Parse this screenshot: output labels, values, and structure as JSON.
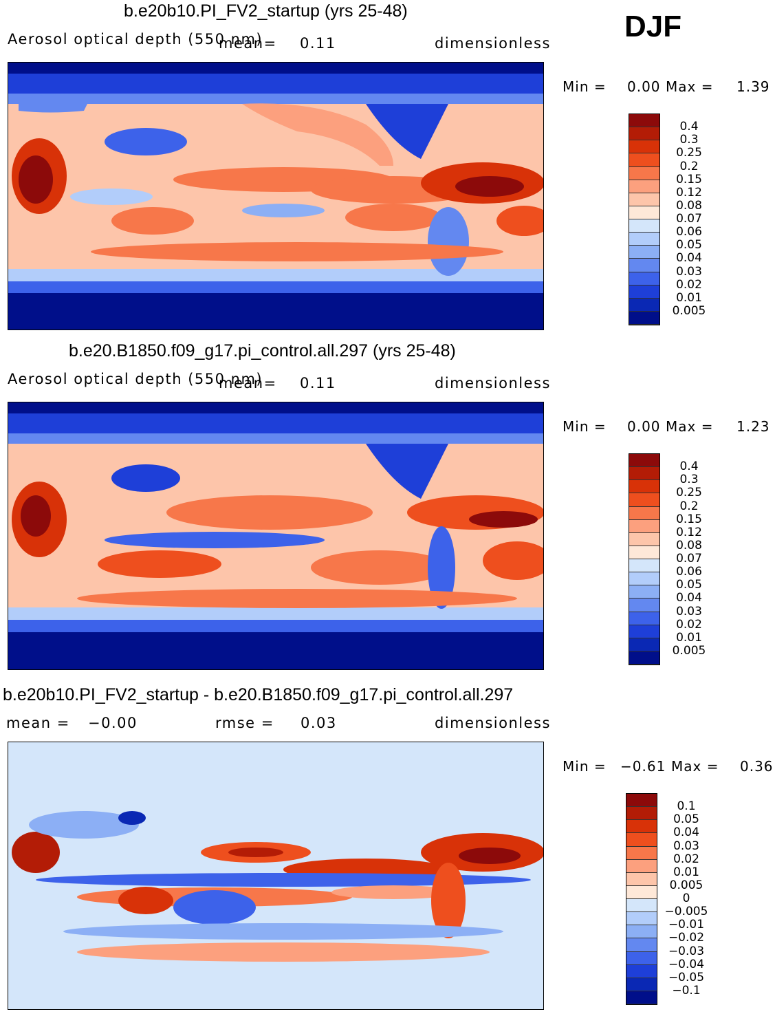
{
  "season": "DJF",
  "panels": [
    {
      "title": "b.e20b10.PI_FV2_startup (yrs 25-48)",
      "variable": "Aerosol optical depth (550 nm)",
      "mean_label": "mean",
      "mean_value": "0.11",
      "units": "dimensionless",
      "min_label": "Min  =",
      "min_value": "0.00",
      "max_label": "Max  =",
      "max_value": "1.39",
      "levels": [
        "0.4",
        "0.3",
        "0.25",
        "0.2",
        "0.15",
        "0.12",
        "0.08",
        "0.07",
        "0.06",
        "0.05",
        "0.04",
        "0.03",
        "0.02",
        "0.01",
        "0.005"
      ],
      "colors": [
        "#8c0a0a",
        "#b31c06",
        "#d83208",
        "#ee4f1e",
        "#f7774a",
        "#fca07e",
        "#fdc5aa",
        "#fee8d8",
        "#d4e6fa",
        "#b2cdfa",
        "#8caff5",
        "#6388f0",
        "#3d62ea",
        "#1e3fd8",
        "#0a28b4",
        "#000f8a"
      ]
    },
    {
      "title": "b.e20.B1850.f09_g17.pi_control.all.297 (yrs 25-48)",
      "variable": "Aerosol optical depth (550 nm)",
      "mean_label": "mean",
      "mean_value": "0.11",
      "units": "dimensionless",
      "min_label": "Min  =",
      "min_value": "0.00",
      "max_label": "Max  =",
      "max_value": "1.23",
      "levels": [
        "0.4",
        "0.3",
        "0.25",
        "0.2",
        "0.15",
        "0.12",
        "0.08",
        "0.07",
        "0.06",
        "0.05",
        "0.04",
        "0.03",
        "0.02",
        "0.01",
        "0.005"
      ],
      "colors": [
        "#8c0a0a",
        "#b31c06",
        "#d83208",
        "#ee4f1e",
        "#f7774a",
        "#fca07e",
        "#fdc5aa",
        "#fee8d8",
        "#d4e6fa",
        "#b2cdfa",
        "#8caff5",
        "#6388f0",
        "#3d62ea",
        "#1e3fd8",
        "#0a28b4",
        "#000f8a"
      ]
    },
    {
      "title": "b.e20b10.PI_FV2_startup - b.e20.B1850.f09_g17.pi_control.all.297",
      "mean_label": "mean  =",
      "mean_value": "−0.00",
      "rmse_label": "rmse  =",
      "rmse_value": "0.03",
      "units": "dimensionless",
      "min_label": "Min  =",
      "min_value": "−0.61",
      "max_label": "Max  =",
      "max_value": "0.36",
      "levels": [
        "0.1",
        "0.05",
        "0.04",
        "0.03",
        "0.02",
        "0.01",
        "0.005",
        "0",
        "−0.005",
        "−0.01",
        "−0.02",
        "−0.03",
        "−0.04",
        "−0.05",
        "−0.1"
      ],
      "colors": [
        "#8c0a0a",
        "#b31c06",
        "#d83208",
        "#ee4f1e",
        "#f7774a",
        "#fca07e",
        "#fdc5aa",
        "#fee8d8",
        "#d4e6fa",
        "#b2cdfa",
        "#8caff5",
        "#6388f0",
        "#3d62ea",
        "#1e3fd8",
        "#0a28b4",
        "#000f8a"
      ]
    }
  ]
}
